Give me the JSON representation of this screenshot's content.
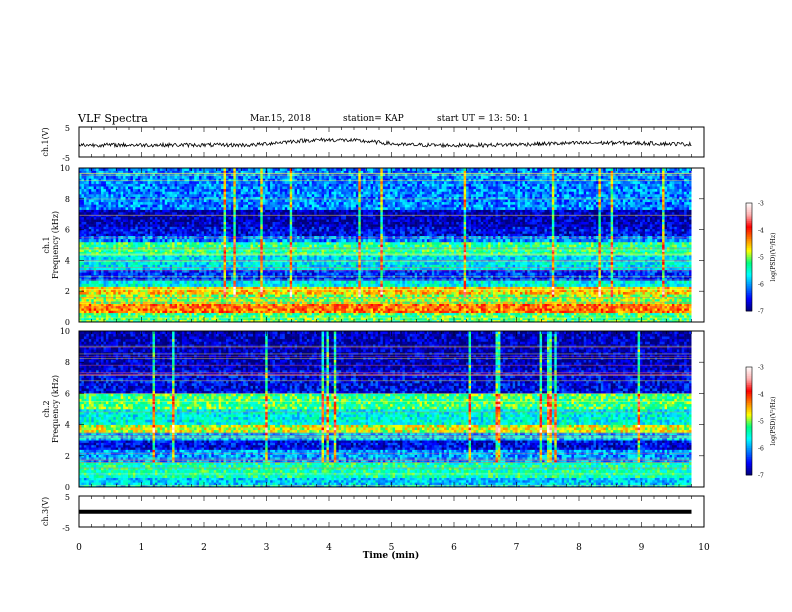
{
  "header": {
    "title": "VLF Spectra",
    "date": "Mar.15, 2018",
    "station": "station= KAP",
    "start": "start  UT =   13: 50: 1"
  },
  "chart_data": [
    {
      "type": "line",
      "id": "ch1_waveform",
      "ylabel": "ch.1(V)",
      "ylim": [
        -5,
        5
      ],
      "yticks": [
        "5",
        "-5"
      ],
      "xlim": [
        0,
        10
      ],
      "series_summary": {
        "x_range": [
          0,
          9.8
        ],
        "y_range": [
          -2,
          1.2
        ],
        "trend": "noisy signal near -1 V rising to about +0.8 V near 3.5-5 min then returning to -0.5 to -1 V"
      }
    },
    {
      "type": "heatmap",
      "id": "ch1_spectrogram",
      "ylabel": "Frequency (kHz)",
      "channel_label": "ch.1",
      "ylim": [
        0,
        10
      ],
      "yticks": [
        "0",
        "2",
        "4",
        "6",
        "8",
        "10"
      ],
      "xlim": [
        0,
        9.8
      ],
      "colorbar": {
        "label": "log(PSD)(V²/Hz)",
        "range": [
          -7,
          -3
        ],
        "ticks": [
          "-3",
          "-4",
          "-5",
          "-6",
          "-7"
        ]
      },
      "bands_kHz_level": [
        [
          0.0,
          0.6,
          -5.2
        ],
        [
          0.6,
          1.2,
          -4.3
        ],
        [
          1.2,
          1.8,
          -5.0
        ],
        [
          1.8,
          2.3,
          -4.6
        ],
        [
          2.3,
          2.7,
          -5.6
        ],
        [
          2.7,
          3.4,
          -6.4
        ],
        [
          3.4,
          4.4,
          -5.7
        ],
        [
          4.4,
          5.2,
          -5.3
        ],
        [
          5.2,
          5.6,
          -6.1
        ],
        [
          5.6,
          6.2,
          -6.6
        ],
        [
          6.2,
          7.3,
          -6.8
        ],
        [
          7.3,
          10.0,
          -6.1
        ]
      ]
    },
    {
      "type": "heatmap",
      "id": "ch2_spectrogram",
      "ylabel": "Frequency (kHz)",
      "channel_label": "ch.2",
      "ylim": [
        0,
        10
      ],
      "yticks": [
        "0",
        "2",
        "4",
        "6",
        "8",
        "10"
      ],
      "xlim": [
        0,
        9.8
      ],
      "colorbar": {
        "label": "log(PSD)(V²/Hz)",
        "range": [
          -7,
          -3
        ],
        "ticks": [
          "-3",
          "-4",
          "-5",
          "-6",
          "-7"
        ]
      },
      "bands_kHz_level": [
        [
          0.0,
          0.6,
          -5.8
        ],
        [
          0.6,
          1.6,
          -5.4
        ],
        [
          1.6,
          2.4,
          -6.0
        ],
        [
          2.4,
          3.0,
          -6.6
        ],
        [
          3.0,
          3.5,
          -5.9
        ],
        [
          3.5,
          4.0,
          -4.8
        ],
        [
          4.0,
          5.0,
          -5.6
        ],
        [
          5.0,
          6.0,
          -5.2
        ],
        [
          6.0,
          7.5,
          -6.6
        ],
        [
          7.5,
          10.0,
          -6.8
        ]
      ]
    },
    {
      "type": "line",
      "id": "ch3_waveform",
      "ylabel": "ch.3(V)",
      "ylim": [
        -5,
        5
      ],
      "yticks": [
        "5",
        "-5"
      ],
      "xlim": [
        0,
        10
      ],
      "series_summary": {
        "x_range": [
          0,
          9.8
        ],
        "y_value": -0.1,
        "trend": "flat thick line"
      }
    }
  ],
  "xaxis": {
    "label": "Time (min)",
    "ticks": [
      "0",
      "1",
      "2",
      "3",
      "4",
      "5",
      "6",
      "7",
      "8",
      "9",
      "10"
    ]
  },
  "colors": {
    "colormap": [
      "#00007a",
      "#0000ff",
      "#0080ff",
      "#00ffff",
      "#00ff80",
      "#ffff00",
      "#ff8000",
      "#ff0000",
      "#ffb0b0",
      "#ffffff"
    ]
  }
}
